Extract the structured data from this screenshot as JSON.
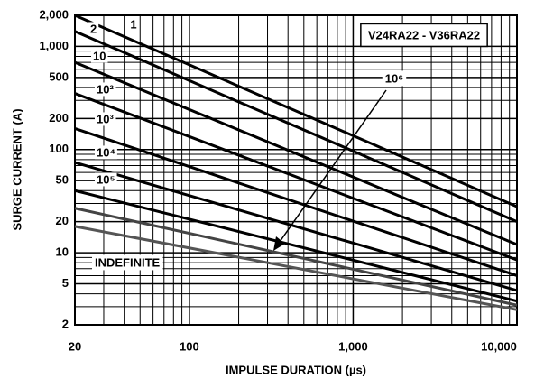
{
  "chart_data": {
    "type": "line",
    "loglog": true,
    "xlabel": "IMPULSE DURATION (µs)",
    "ylabel": "SURGE CURRENT (A)",
    "box_label": "V24RA22 - V36RA22",
    "arrow_label": "10⁶",
    "x": [
      20,
      10000
    ],
    "xlim": [
      20,
      10000
    ],
    "ylim": [
      2,
      2000
    ],
    "xticks": [
      20,
      100,
      {
        "value": 1000,
        "label": "1,000"
      },
      {
        "value": 10000,
        "label": "10,000"
      }
    ],
    "yticks": [
      2,
      5,
      10,
      20,
      50,
      100,
      200,
      500,
      {
        "value": 1000,
        "label": "1,000"
      },
      {
        "value": 2000,
        "label": "2,000"
      }
    ],
    "minor_xticks": [
      30,
      40,
      50,
      60,
      70,
      80,
      90,
      200,
      300,
      400,
      500,
      600,
      700,
      800,
      900,
      2000,
      3000,
      4000,
      5000,
      6000,
      7000,
      8000,
      9000
    ],
    "minor_yticks": [
      3,
      4,
      6,
      7,
      8,
      9,
      30,
      40,
      60,
      70,
      80,
      90,
      300,
      400,
      600,
      700,
      800,
      900
    ],
    "grid": true,
    "series": [
      {
        "name": "1",
        "color": "#000",
        "values": [
          2000,
          28
        ]
      },
      {
        "name": "2",
        "color": "#000",
        "values": [
          1400,
          20
        ]
      },
      {
        "name": "10",
        "color": "#000",
        "values": [
          700,
          12
        ]
      },
      {
        "name": "10²",
        "color": "#000",
        "values": [
          350,
          8.5
        ]
      },
      {
        "name": "10³",
        "color": "#000",
        "values": [
          160,
          6
        ]
      },
      {
        "name": "10⁴",
        "color": "#000",
        "values": [
          75,
          4.3
        ]
      },
      {
        "name": "10⁵",
        "color": "#000",
        "values": [
          40,
          3.4
        ]
      },
      {
        "name": "10⁶",
        "color": "#444",
        "values": [
          27,
          3.1
        ]
      },
      {
        "name": "INDEFINITE",
        "color": "#555",
        "values": [
          18,
          2.8
        ]
      }
    ]
  }
}
